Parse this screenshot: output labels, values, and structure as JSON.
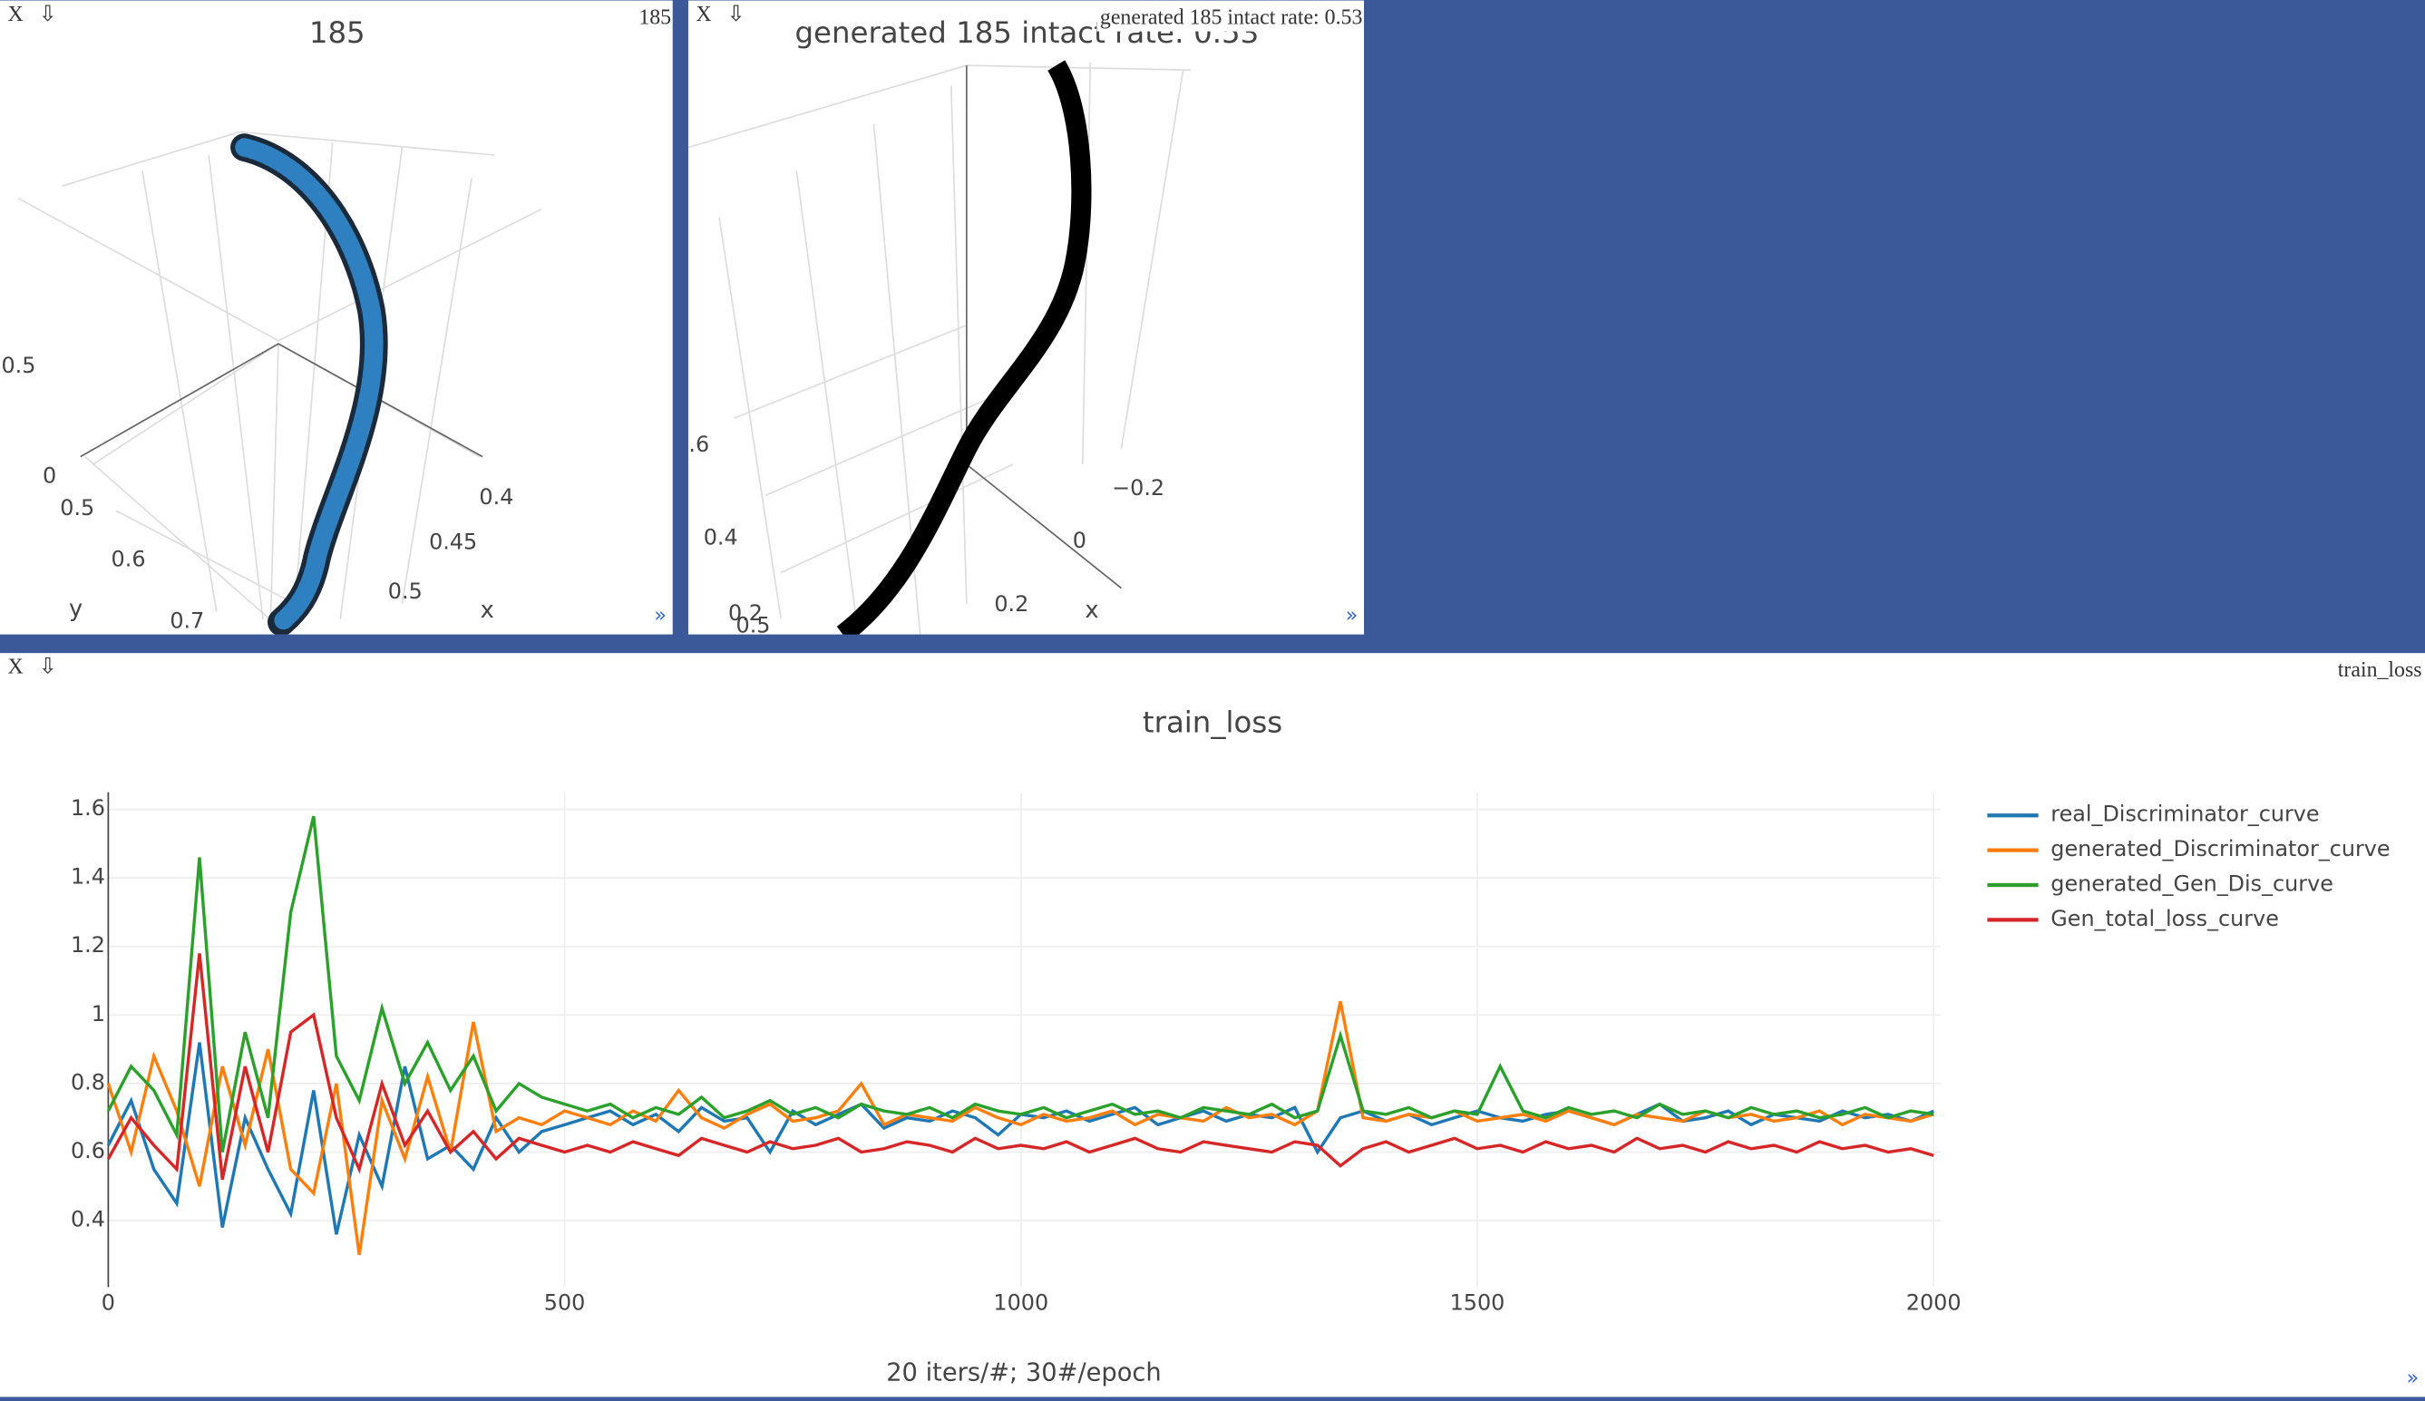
{
  "windows": [
    {
      "close": "X",
      "download": "⇩",
      "label": "185",
      "resize": "»",
      "plot": {
        "title": "185",
        "ticks": [
          "0.5",
          "0",
          "0.5",
          "0.6",
          "0.7",
          "0.4",
          "0.45",
          "0.5"
        ],
        "axis_labels": [
          "y",
          "x"
        ]
      }
    },
    {
      "close": "X",
      "download": "⇩",
      "label": "generated 185 intact rate: 0.53",
      "resize": "»",
      "plot": {
        "title": "generated 185  intact rate: 0.53",
        "ticks": [
          ".6",
          "0.4",
          "0.2",
          "0.5",
          "−0.2",
          "0",
          "0.2"
        ],
        "axis_labels": [
          "x"
        ]
      }
    },
    {
      "close": "X",
      "download": "⇩",
      "label": "train_loss",
      "resize": "»"
    }
  ],
  "chart_data": {
    "type": "line",
    "title": "train_loss",
    "x_label": "20 iters/#; 30#/epoch",
    "x": [
      0,
      25,
      50,
      75,
      100,
      125,
      150,
      175,
      200,
      225,
      250,
      275,
      300,
      325,
      350,
      375,
      400,
      425,
      450,
      475,
      500,
      525,
      550,
      575,
      600,
      625,
      650,
      675,
      700,
      725,
      750,
      775,
      800,
      825,
      850,
      875,
      900,
      925,
      950,
      975,
      1000,
      1025,
      1050,
      1075,
      1100,
      1125,
      1150,
      1175,
      1200,
      1225,
      1250,
      1275,
      1300,
      1325,
      1350,
      1375,
      1400,
      1425,
      1450,
      1475,
      1500,
      1525,
      1550,
      1575,
      1600,
      1625,
      1650,
      1675,
      1700,
      1725,
      1750,
      1775,
      1800,
      1825,
      1850,
      1875,
      1900,
      1925,
      1950,
      1975,
      2000
    ],
    "series": [
      {
        "name": "real_Discriminator_curve",
        "color": "#1f77b4",
        "values": [
          0.62,
          0.75,
          0.55,
          0.45,
          0.92,
          0.38,
          0.7,
          0.55,
          0.42,
          0.78,
          0.36,
          0.65,
          0.5,
          0.85,
          0.58,
          0.62,
          0.55,
          0.7,
          0.6,
          0.66,
          0.68,
          0.7,
          0.72,
          0.68,
          0.71,
          0.66,
          0.73,
          0.69,
          0.7,
          0.6,
          0.72,
          0.68,
          0.71,
          0.74,
          0.67,
          0.7,
          0.69,
          0.72,
          0.7,
          0.65,
          0.71,
          0.7,
          0.72,
          0.69,
          0.71,
          0.73,
          0.68,
          0.7,
          0.72,
          0.69,
          0.71,
          0.7,
          0.73,
          0.6,
          0.7,
          0.72,
          0.69,
          0.71,
          0.68,
          0.7,
          0.72,
          0.7,
          0.69,
          0.71,
          0.72,
          0.7,
          0.68,
          0.71,
          0.74,
          0.69,
          0.7,
          0.72,
          0.68,
          0.71,
          0.7,
          0.69,
          0.72,
          0.7,
          0.71,
          0.69,
          0.72
        ]
      },
      {
        "name": "generated_Discriminator_curve",
        "color": "#ff7f0e",
        "values": [
          0.8,
          0.6,
          0.88,
          0.72,
          0.5,
          0.85,
          0.62,
          0.9,
          0.55,
          0.48,
          0.8,
          0.3,
          0.75,
          0.58,
          0.82,
          0.6,
          0.98,
          0.66,
          0.7,
          0.68,
          0.72,
          0.7,
          0.68,
          0.72,
          0.69,
          0.78,
          0.7,
          0.67,
          0.71,
          0.74,
          0.69,
          0.7,
          0.72,
          0.8,
          0.68,
          0.71,
          0.7,
          0.69,
          0.73,
          0.7,
          0.68,
          0.71,
          0.69,
          0.7,
          0.72,
          0.68,
          0.71,
          0.7,
          0.69,
          0.73,
          0.7,
          0.71,
          0.68,
          0.72,
          1.04,
          0.7,
          0.69,
          0.71,
          0.7,
          0.72,
          0.69,
          0.7,
          0.71,
          0.69,
          0.72,
          0.7,
          0.68,
          0.71,
          0.7,
          0.69,
          0.72,
          0.7,
          0.71,
          0.69,
          0.7,
          0.72,
          0.68,
          0.71,
          0.7,
          0.69,
          0.71
        ]
      },
      {
        "name": "generated_Gen_Dis_curve",
        "color": "#2ca02c",
        "values": [
          0.72,
          0.85,
          0.78,
          0.65,
          1.46,
          0.6,
          0.95,
          0.7,
          1.3,
          1.58,
          0.88,
          0.75,
          1.02,
          0.8,
          0.92,
          0.78,
          0.88,
          0.72,
          0.8,
          0.76,
          0.74,
          0.72,
          0.74,
          0.7,
          0.73,
          0.71,
          0.76,
          0.7,
          0.72,
          0.75,
          0.71,
          0.73,
          0.7,
          0.74,
          0.72,
          0.71,
          0.73,
          0.7,
          0.74,
          0.72,
          0.71,
          0.73,
          0.7,
          0.72,
          0.74,
          0.71,
          0.72,
          0.7,
          0.73,
          0.72,
          0.71,
          0.74,
          0.7,
          0.72,
          0.94,
          0.72,
          0.71,
          0.73,
          0.7,
          0.72,
          0.71,
          0.85,
          0.72,
          0.7,
          0.73,
          0.71,
          0.72,
          0.7,
          0.74,
          0.71,
          0.72,
          0.7,
          0.73,
          0.71,
          0.72,
          0.7,
          0.71,
          0.73,
          0.7,
          0.72,
          0.71
        ]
      },
      {
        "name": "Gen_total_loss_curve",
        "color": "#d62728",
        "values": [
          0.58,
          0.7,
          0.62,
          0.55,
          1.18,
          0.52,
          0.85,
          0.6,
          0.95,
          1.0,
          0.7,
          0.55,
          0.8,
          0.62,
          0.72,
          0.6,
          0.66,
          0.58,
          0.64,
          0.62,
          0.6,
          0.62,
          0.6,
          0.63,
          0.61,
          0.59,
          0.64,
          0.62,
          0.6,
          0.63,
          0.61,
          0.62,
          0.64,
          0.6,
          0.61,
          0.63,
          0.62,
          0.6,
          0.64,
          0.61,
          0.62,
          0.61,
          0.63,
          0.6,
          0.62,
          0.64,
          0.61,
          0.6,
          0.63,
          0.62,
          0.61,
          0.6,
          0.63,
          0.62,
          0.56,
          0.61,
          0.63,
          0.6,
          0.62,
          0.64,
          0.61,
          0.62,
          0.6,
          0.63,
          0.61,
          0.62,
          0.6,
          0.64,
          0.61,
          0.62,
          0.6,
          0.63,
          0.61,
          0.62,
          0.6,
          0.63,
          0.61,
          0.62,
          0.6,
          0.61,
          0.59
        ]
      }
    ],
    "xlim": [
      0,
      2008
    ],
    "xticks": [
      0,
      500,
      1000,
      1500,
      2000
    ],
    "ylim": [
      0.206,
      1.65
    ],
    "yticks": [
      0.4,
      0.6,
      0.8,
      1,
      1.2,
      1.4,
      1.6
    ],
    "grid": true,
    "legend": "outside-right"
  }
}
